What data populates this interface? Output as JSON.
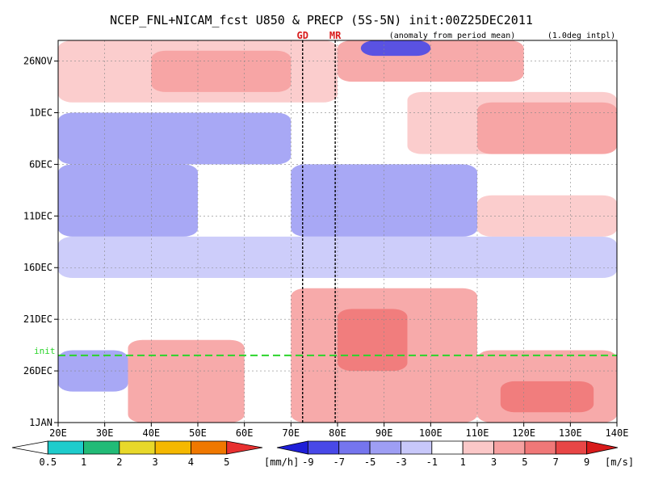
{
  "chart_data": {
    "type": "heatmap",
    "title": "NCEP_FNL+NICAM_fcst U850 & PRECP (5S-5N) init:00Z25DEC2011",
    "subtitle": "(anomaly from period mean)",
    "note": "(1.0deg intpl)",
    "x_ticks": [
      "20E",
      "30E",
      "40E",
      "50E",
      "60E",
      "70E",
      "80E",
      "90E",
      "100E",
      "110E",
      "120E",
      "130E",
      "140E"
    ],
    "x_range": [
      20,
      140
    ],
    "y_ticks": [
      "26NOV",
      "1DEC",
      "6DEC",
      "11DEC",
      "16DEC",
      "21DEC",
      "26DEC",
      "1JAN"
    ],
    "y_range_days": [
      -2,
      35
    ],
    "init_label": "init",
    "init_day": 28.5,
    "markers": [
      {
        "label": "GD",
        "lon": 72.5
      },
      {
        "label": "MR",
        "lon": 79.5
      }
    ],
    "u850_colorbar": {
      "labels": [
        "-9",
        "-7",
        "-5",
        "-3",
        "-1",
        "1",
        "3",
        "5",
        "7",
        "9"
      ],
      "unit": "[m/s]",
      "colors": [
        "#1f1fd8",
        "#4848e8",
        "#7575ee",
        "#9e9ef4",
        "#c8c8fa",
        "#ffffff",
        "#fbc8c8",
        "#f6a1a1",
        "#f07878",
        "#e84646",
        "#d81a1a"
      ]
    },
    "precip_colorbar": {
      "labels": [
        "0.5",
        "1",
        "2",
        "3",
        "4",
        "5"
      ],
      "unit": "[mm/h]",
      "colors": [
        "#ffffff",
        "#1ecccc",
        "#22bb77",
        "#e8d82a",
        "#f5b800",
        "#f07800",
        "#e83030"
      ]
    },
    "u850_anomaly_regions": [
      {
        "lon_min": 20,
        "lon_max": 80,
        "day_min": -2,
        "day_max": 4,
        "value": 3
      },
      {
        "lon_min": 40,
        "lon_max": 70,
        "day_min": -1,
        "day_max": 3,
        "value": 5
      },
      {
        "lon_min": 80,
        "lon_max": 120,
        "day_min": -2,
        "day_max": 2,
        "value": 5
      },
      {
        "lon_min": 85,
        "lon_max": 100,
        "day_min": -2,
        "day_max": -0.5,
        "value": -7
      },
      {
        "lon_min": 95,
        "lon_max": 140,
        "day_min": 3,
        "day_max": 9,
        "value": 3
      },
      {
        "lon_min": 110,
        "lon_max": 140,
        "day_min": 4,
        "day_max": 9,
        "value": 5
      },
      {
        "lon_min": 20,
        "lon_max": 70,
        "day_min": 5,
        "day_max": 10,
        "value": -3
      },
      {
        "lon_min": 70,
        "lon_max": 110,
        "day_min": 10,
        "day_max": 17,
        "value": -3
      },
      {
        "lon_min": 20,
        "lon_max": 50,
        "day_min": 10,
        "day_max": 17,
        "value": -3
      },
      {
        "lon_min": 110,
        "lon_max": 140,
        "day_min": 13,
        "day_max": 17,
        "value": 3
      },
      {
        "lon_min": 20,
        "lon_max": 140,
        "day_min": 17,
        "day_max": 21,
        "value": -1
      },
      {
        "lon_min": 70,
        "lon_max": 110,
        "day_min": 22,
        "day_max": 35,
        "value": 5
      },
      {
        "lon_min": 80,
        "lon_max": 95,
        "day_min": 24,
        "day_max": 30,
        "value": 7
      },
      {
        "lon_min": 35,
        "lon_max": 60,
        "day_min": 27,
        "day_max": 35,
        "value": 5
      },
      {
        "lon_min": 110,
        "lon_max": 140,
        "day_min": 28,
        "day_max": 35,
        "value": 5
      },
      {
        "lon_min": 115,
        "lon_max": 135,
        "day_min": 31,
        "day_max": 34,
        "value": 7
      },
      {
        "lon_min": 20,
        "lon_max": 35,
        "day_min": 28,
        "day_max": 32,
        "value": -3
      }
    ]
  }
}
